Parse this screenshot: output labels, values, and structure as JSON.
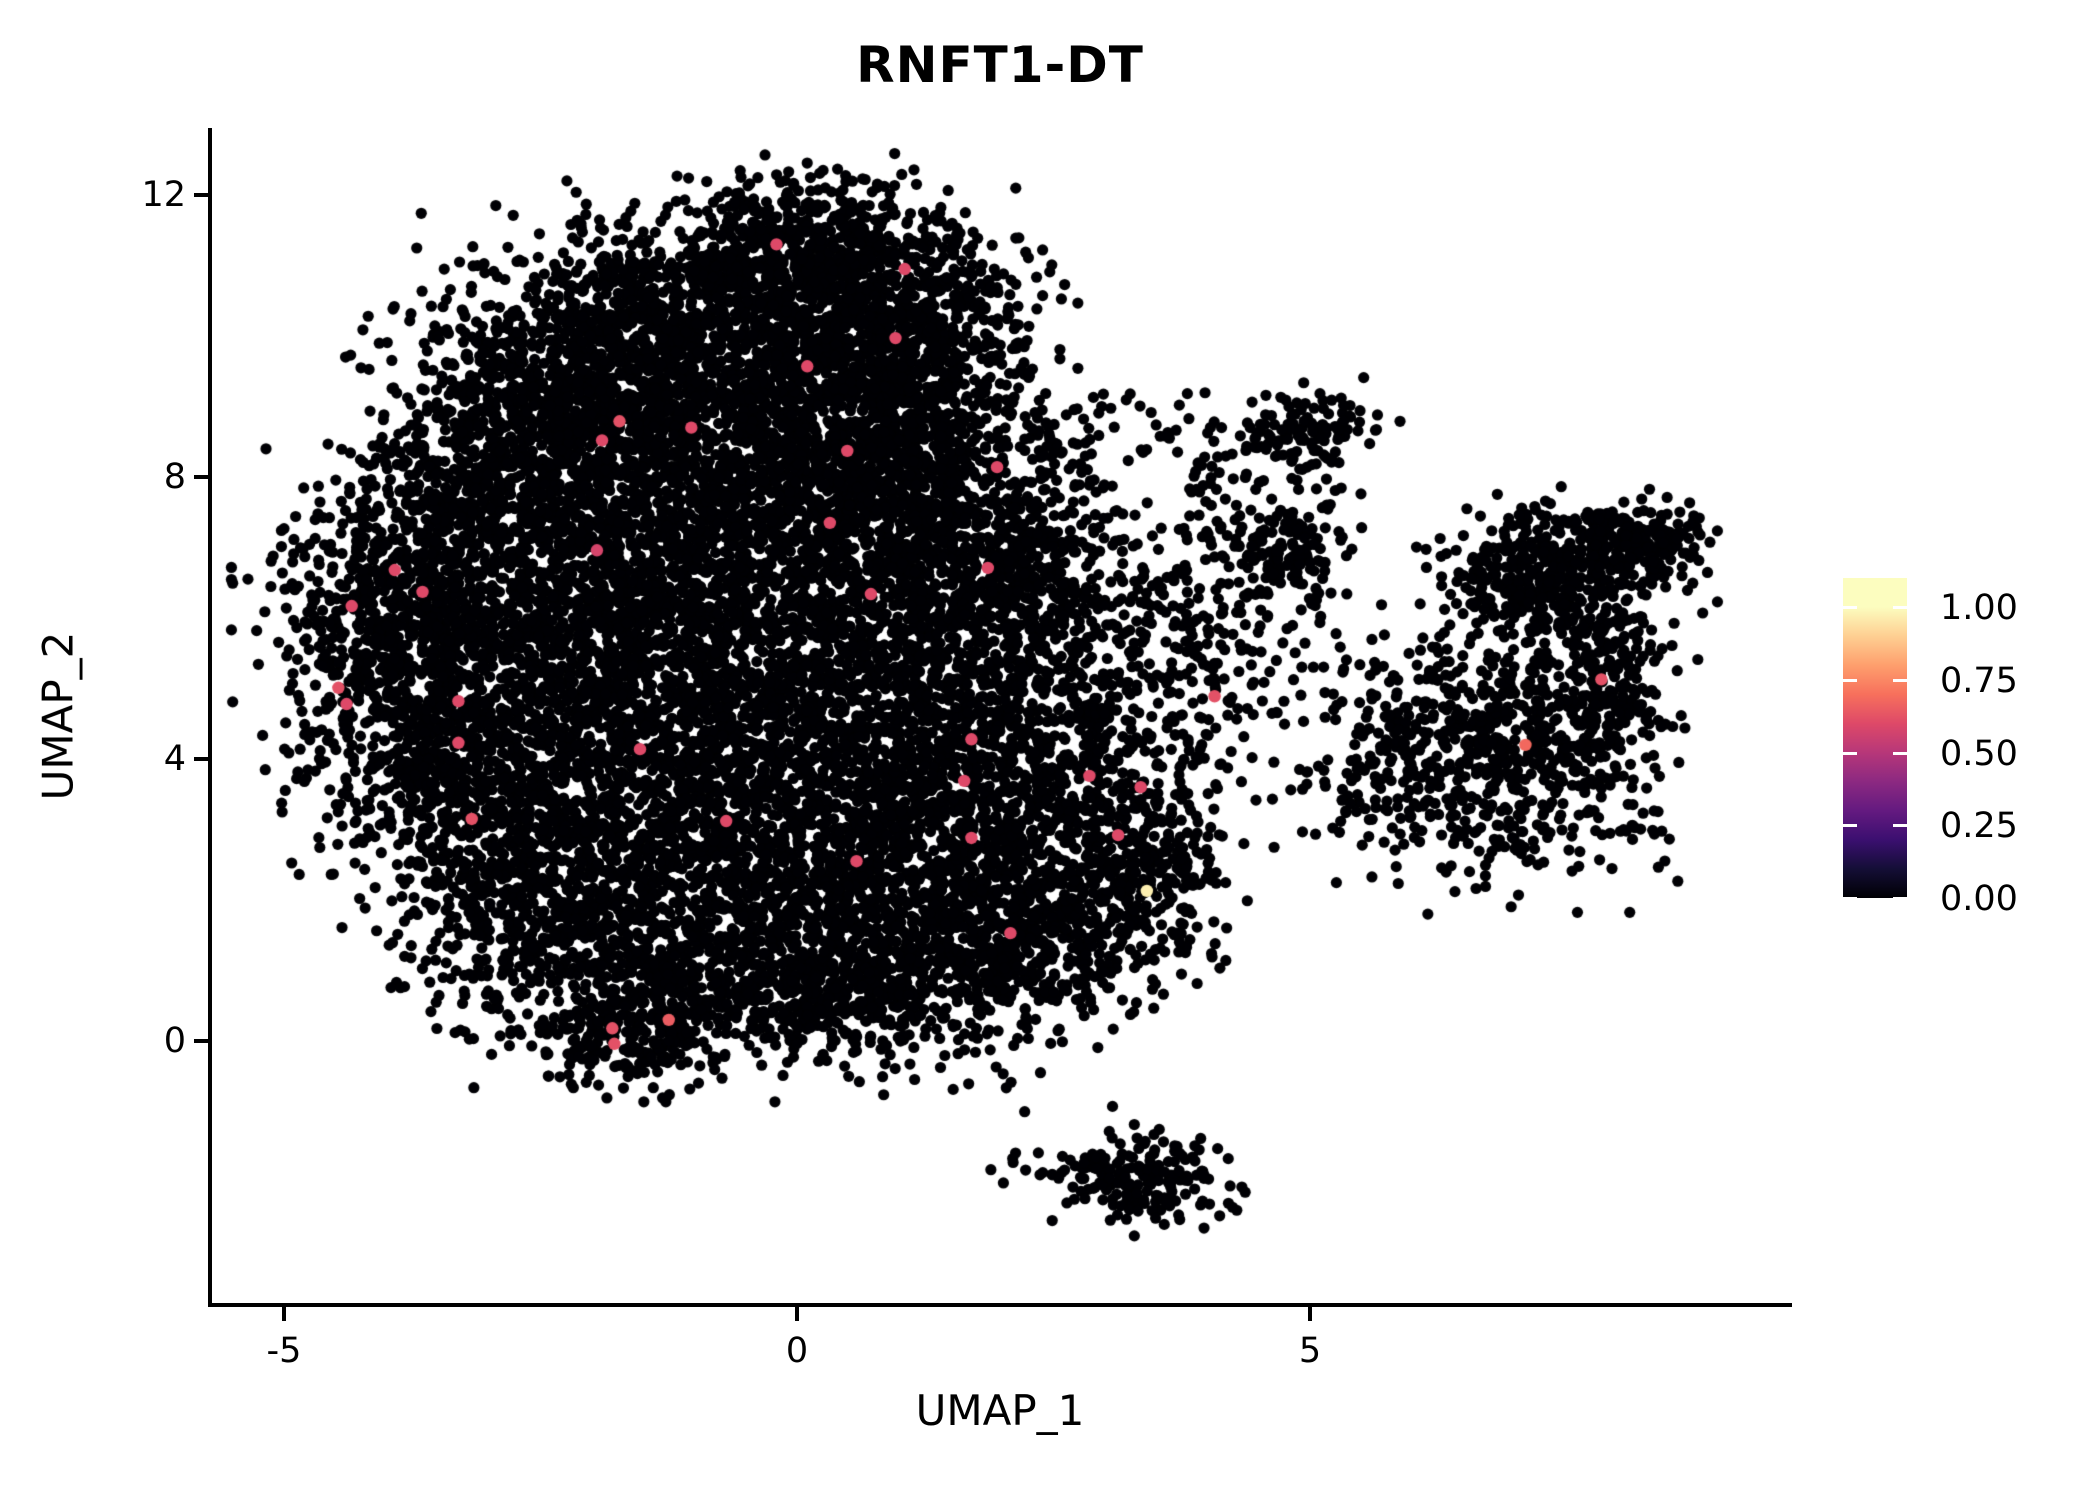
{
  "title": "RNFT1-DT",
  "background": "#ffffff",
  "chart_data": {
    "type": "scatter",
    "title": "RNFT1-DT",
    "xlabel": "UMAP_1",
    "ylabel": "UMAP_2",
    "xlim": [
      -5.72,
      9.68
    ],
    "ylim": [
      -3.74,
      12.95
    ],
    "x_ticks": [
      {
        "label": "-5",
        "value": -5
      },
      {
        "label": "0",
        "value": 0
      },
      {
        "label": "5",
        "value": 5
      }
    ],
    "y_ticks": [
      {
        "label": "0",
        "value": 0
      },
      {
        "label": "4",
        "value": 4
      },
      {
        "label": "8",
        "value": 8
      },
      {
        "label": "12",
        "value": 12
      }
    ],
    "grid": false,
    "legend_position": "right",
    "point_color": "#000004",
    "point_radius": 5.6,
    "highlight_radius": 6.2,
    "colorbar": {
      "labels": [
        "1.00",
        "0.75",
        "0.50",
        "0.25",
        "0.00"
      ],
      "tick_values": [
        1.0,
        0.75,
        0.5,
        0.25,
        0.0
      ],
      "value_min": 0.0,
      "value_max": 1.1,
      "magma_stops": [
        "#000004",
        "#140e36",
        "#3b0f70",
        "#641a80",
        "#8c2981",
        "#b73779",
        "#de4968",
        "#f7705c",
        "#fe9f6d",
        "#fecf92",
        "#fcfdbf"
      ]
    },
    "clusters_note": "zero-expression cells drawn as black dots; gaussian mixture components [cx, cy, sigx, sigy, n] in UMAP coords",
    "clusters": [
      [
        0.1,
        11.35,
        0.75,
        0.45,
        500
      ],
      [
        -1.05,
        10.55,
        1.05,
        0.6,
        650
      ],
      [
        0.95,
        10.35,
        0.65,
        0.55,
        450
      ],
      [
        -2.2,
        9.4,
        0.8,
        0.6,
        550
      ],
      [
        -0.6,
        9.3,
        1.15,
        0.65,
        850
      ],
      [
        1.05,
        9.15,
        0.6,
        0.65,
        420
      ],
      [
        -3.1,
        8.0,
        0.7,
        0.7,
        430
      ],
      [
        -1.6,
        7.9,
        1.0,
        0.75,
        650
      ],
      [
        0.3,
        7.9,
        0.9,
        0.75,
        600
      ],
      [
        1.45,
        7.5,
        0.6,
        0.75,
        380
      ],
      [
        -4.0,
        6.2,
        0.55,
        0.8,
        360
      ],
      [
        -2.8,
        6.3,
        0.8,
        0.85,
        520
      ],
      [
        -1.2,
        6.3,
        1.0,
        0.85,
        650
      ],
      [
        0.6,
        6.3,
        0.9,
        0.85,
        560
      ],
      [
        1.8,
        6.5,
        0.5,
        0.6,
        240
      ],
      [
        -3.85,
        4.7,
        0.6,
        0.85,
        400
      ],
      [
        -2.4,
        4.6,
        0.9,
        0.95,
        620
      ],
      [
        -0.7,
        4.6,
        1.0,
        0.95,
        660
      ],
      [
        1.0,
        4.5,
        0.9,
        0.9,
        560
      ],
      [
        2.2,
        4.9,
        0.6,
        0.8,
        280
      ],
      [
        -3.0,
        3.0,
        0.7,
        0.8,
        430
      ],
      [
        -1.5,
        2.9,
        0.9,
        0.9,
        570
      ],
      [
        0.2,
        2.8,
        0.9,
        0.9,
        530
      ],
      [
        1.7,
        2.9,
        0.8,
        0.8,
        430
      ],
      [
        3.0,
        3.3,
        0.65,
        0.85,
        320
      ],
      [
        -2.2,
        1.4,
        0.75,
        0.75,
        420
      ],
      [
        -0.6,
        1.2,
        0.9,
        0.75,
        480
      ],
      [
        1.0,
        1.3,
        0.85,
        0.75,
        430
      ],
      [
        2.4,
        1.6,
        0.65,
        0.65,
        280
      ],
      [
        -1.6,
        0.1,
        0.5,
        0.33,
        210
      ],
      [
        0.0,
        0.6,
        0.75,
        0.45,
        240
      ],
      [
        1.6,
        0.95,
        0.6,
        0.5,
        200
      ],
      [
        3.3,
        2.2,
        0.45,
        0.65,
        190
      ],
      [
        2.7,
        6.6,
        0.7,
        0.7,
        110
      ],
      [
        3.9,
        5.4,
        0.7,
        0.9,
        130
      ],
      [
        2.6,
        8.3,
        0.35,
        0.5,
        55
      ],
      [
        3.3,
        5.9,
        0.6,
        0.7,
        70
      ],
      [
        3.4,
        8.7,
        0.6,
        0.35,
        30
      ],
      [
        4.97,
        8.64,
        0.33,
        0.28,
        110
      ],
      [
        4.45,
        7.95,
        0.5,
        0.5,
        55
      ],
      [
        7.55,
        6.9,
        0.55,
        0.35,
        280
      ],
      [
        8.3,
        7.1,
        0.33,
        0.22,
        120
      ],
      [
        7.15,
        6.35,
        0.4,
        0.28,
        80
      ],
      [
        6.7,
        6.5,
        0.3,
        0.25,
        35
      ],
      [
        7.6,
        6.0,
        0.4,
        0.3,
        60
      ],
      [
        4.7,
        7.0,
        0.33,
        0.3,
        130
      ],
      [
        4.35,
        6.3,
        0.5,
        0.5,
        55
      ],
      [
        6.1,
        4.0,
        0.6,
        0.8,
        340
      ],
      [
        7.2,
        4.3,
        0.55,
        0.9,
        370
      ],
      [
        7.9,
        4.9,
        0.32,
        0.7,
        200
      ],
      [
        8.25,
        2.9,
        0.28,
        0.25,
        22
      ],
      [
        3.45,
        -1.95,
        0.35,
        0.3,
        130
      ],
      [
        3.1,
        -1.85,
        0.55,
        0.35,
        55
      ],
      [
        2.7,
        -2.05,
        0.22,
        0.1,
        10
      ]
    ],
    "highlighted_cells": [
      {
        "x": -0.2,
        "y": 11.3,
        "v": 0.6
      },
      {
        "x": 1.05,
        "y": 10.95,
        "v": 0.6
      },
      {
        "x": 0.96,
        "y": 9.97,
        "v": 0.6
      },
      {
        "x": 0.1,
        "y": 9.57,
        "v": 0.6
      },
      {
        "x": -1.73,
        "y": 8.79,
        "v": 0.62
      },
      {
        "x": -1.03,
        "y": 8.7,
        "v": 0.6
      },
      {
        "x": -1.9,
        "y": 8.52,
        "v": 0.6
      },
      {
        "x": 0.49,
        "y": 8.37,
        "v": 0.6
      },
      {
        "x": 1.95,
        "y": 8.14,
        "v": 0.6
      },
      {
        "x": 0.32,
        "y": 7.35,
        "v": 0.6
      },
      {
        "x": -1.95,
        "y": 6.96,
        "v": 0.58
      },
      {
        "x": -3.92,
        "y": 6.68,
        "v": 0.6
      },
      {
        "x": -3.65,
        "y": 6.37,
        "v": 0.6
      },
      {
        "x": -4.34,
        "y": 6.17,
        "v": 0.6
      },
      {
        "x": 0.72,
        "y": 6.34,
        "v": 0.6
      },
      {
        "x": 1.86,
        "y": 6.71,
        "v": 0.6
      },
      {
        "x": -4.47,
        "y": 5.01,
        "v": 0.62
      },
      {
        "x": -4.39,
        "y": 4.78,
        "v": 0.6
      },
      {
        "x": -3.3,
        "y": 4.82,
        "v": 0.6
      },
      {
        "x": -3.3,
        "y": 4.23,
        "v": 0.6
      },
      {
        "x": -1.53,
        "y": 4.14,
        "v": 0.6
      },
      {
        "x": 4.07,
        "y": 4.89,
        "v": 0.62
      },
      {
        "x": 1.7,
        "y": 4.28,
        "v": 0.6
      },
      {
        "x": 1.63,
        "y": 3.69,
        "v": 0.6
      },
      {
        "x": 2.85,
        "y": 3.76,
        "v": 0.6
      },
      {
        "x": 3.35,
        "y": 3.6,
        "v": 0.6
      },
      {
        "x": -0.69,
        "y": 3.12,
        "v": 0.6
      },
      {
        "x": 3.13,
        "y": 2.92,
        "v": 0.6
      },
      {
        "x": 1.7,
        "y": 2.88,
        "v": 0.6
      },
      {
        "x": 0.58,
        "y": 2.55,
        "v": 0.6
      },
      {
        "x": -3.17,
        "y": 3.15,
        "v": 0.62
      },
      {
        "x": 2.08,
        "y": 1.53,
        "v": 0.6
      },
      {
        "x": -1.8,
        "y": 0.18,
        "v": 0.62
      },
      {
        "x": -1.78,
        "y": -0.04,
        "v": 0.62
      },
      {
        "x": -1.25,
        "y": 0.3,
        "v": 0.65
      },
      {
        "x": 7.84,
        "y": 5.13,
        "v": 0.62
      },
      {
        "x": 7.1,
        "y": 4.2,
        "v": 0.68
      },
      {
        "x": 3.41,
        "y": 2.13,
        "v": 0.97
      }
    ]
  }
}
